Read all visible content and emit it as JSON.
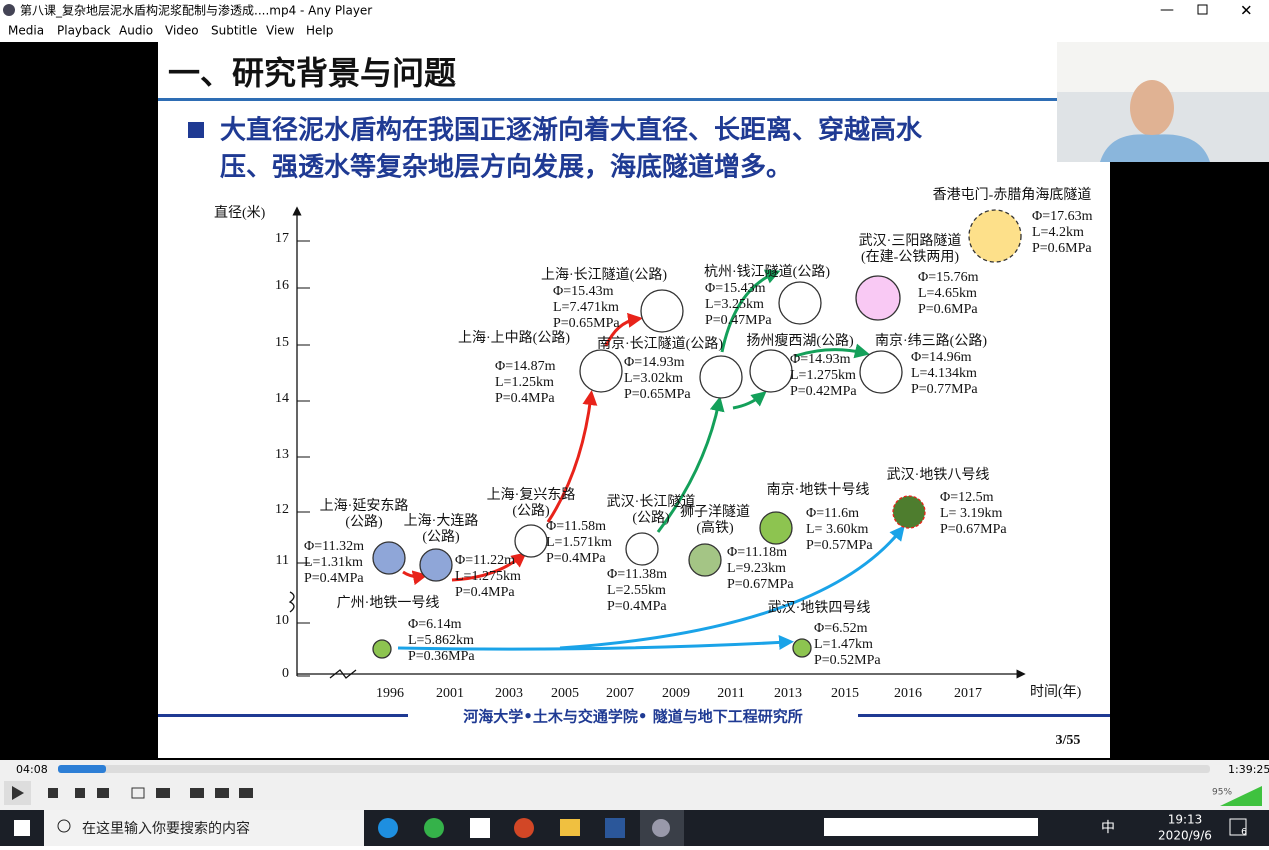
{
  "window": {
    "title": "第八课_复杂地层泥水盾构泥浆配制与渗透成....mp4 - Any Player",
    "menu": [
      "Media",
      "Playback",
      "Audio",
      "Video",
      "Subtitle",
      "View",
      "Help"
    ]
  },
  "slide": {
    "heading": "一、研究背景与问题",
    "bullet": [
      "大直径泥水盾构在我国正逐渐向着大直径、长距离、穿越高水",
      "压、强透水等复杂地层方向发展，海底隧道增多。"
    ],
    "diagram": {
      "y_label": "直径(米)",
      "y_ticks": [
        "17",
        "16",
        "15",
        "14",
        "13",
        "12",
        "11",
        "10",
        "0"
      ],
      "x_ticks": [
        "1996",
        "2001",
        "2003",
        "2005",
        "2007",
        "2009",
        "2011",
        "2013",
        "2015",
        "2016",
        "2017"
      ],
      "x_label": "时间(年)",
      "tunnels": [
        {
          "name": [
            "上海·延安东路",
            "(公路)"
          ],
          "specs": [
            "Φ=11.32m",
            "L=1.31km",
            "P=0.4MPa"
          ]
        },
        {
          "name": [
            "上海·大连路",
            "(公路)"
          ],
          "specs": [
            "Φ=11.22m",
            "L=1.275km",
            "P=0.4MPa"
          ]
        },
        {
          "name": [
            "上海·复兴东路",
            "(公路)"
          ],
          "specs": [
            "Φ=11.58m",
            "L=1.571km",
            "P=0.4MPa"
          ]
        },
        {
          "name": [
            "上海·上中路(公路)"
          ],
          "specs": [
            "Φ=14.87m",
            "L=1.25km",
            "P=0.4MPa"
          ]
        },
        {
          "name": [
            "上海·长江隧道(公路)"
          ],
          "specs": [
            "Φ=15.43m",
            "L=7.471km",
            "P=0.65MPa"
          ]
        },
        {
          "name": [
            "南京·长江隧道(公路)"
          ],
          "specs": [
            "Φ=14.93m",
            "L=3.02km",
            "P=0.65MPa"
          ]
        },
        {
          "name": [
            "杭州·钱江隧道(公路)"
          ],
          "specs": [
            "Φ=15.43m",
            "L=3.25km",
            "P=0.47MPa"
          ]
        },
        {
          "name": [
            "扬州瘦西湖(公路)"
          ],
          "specs": [
            "Φ=14.93m",
            "L=1.275km",
            "P=0.42MPa"
          ]
        },
        {
          "name": [
            "南京·纬三路(公路)"
          ],
          "specs": [
            "Φ=14.96m",
            "L=4.134km",
            "P=0.77MPa"
          ]
        },
        {
          "name": [
            "武汉·三阳路隧道",
            "(在建-公铁两用)"
          ],
          "specs": [
            "Φ=15.76m",
            "L=4.65km",
            "P=0.6MPa"
          ]
        },
        {
          "name": [
            "香港屯门-赤腊角海底隧道"
          ],
          "specs": [
            "Φ=17.63m",
            "L=4.2km",
            "P=0.6MPa"
          ]
        },
        {
          "name": [
            "武汉·长江隧道",
            "(公路)"
          ],
          "specs": [
            "Φ=11.38m",
            "L=2.55km",
            "P=0.4MPa"
          ]
        },
        {
          "name": [
            "狮子洋隧道",
            "(高铁)"
          ],
          "specs": [
            "Φ=11.18m",
            "L=9.23km",
            "P=0.67MPa"
          ]
        },
        {
          "name": [
            "南京·地铁十号线"
          ],
          "specs": [
            "Φ=11.6m",
            "L= 3.60km",
            "P=0.57MPa"
          ]
        },
        {
          "name": [
            "武汉·地铁八号线"
          ],
          "specs": [
            "Φ=12.5m",
            "L= 3.19km",
            "P=0.67MPa"
          ]
        },
        {
          "name": [
            "广州·地铁一号线"
          ],
          "specs": [
            "Φ=6.14m",
            "L=5.862km",
            "P=0.36MPa"
          ]
        },
        {
          "name": [
            "武汉·地铁四号线"
          ],
          "specs": [
            "Φ=6.52m",
            "L=1.47km",
            "P=0.52MPa"
          ]
        }
      ]
    },
    "footer": "河海大学•土木与交通学院• 隧道与地下工程研究所",
    "page": "3/55"
  },
  "player": {
    "elapsed": "04:08",
    "duration": "1:39:25",
    "volume": "95%"
  },
  "taskbar": {
    "search": "在这里输入你要搜索的内容",
    "ime": "中",
    "time": "19:13",
    "date": "2020/9/6",
    "notifications": "6"
  }
}
